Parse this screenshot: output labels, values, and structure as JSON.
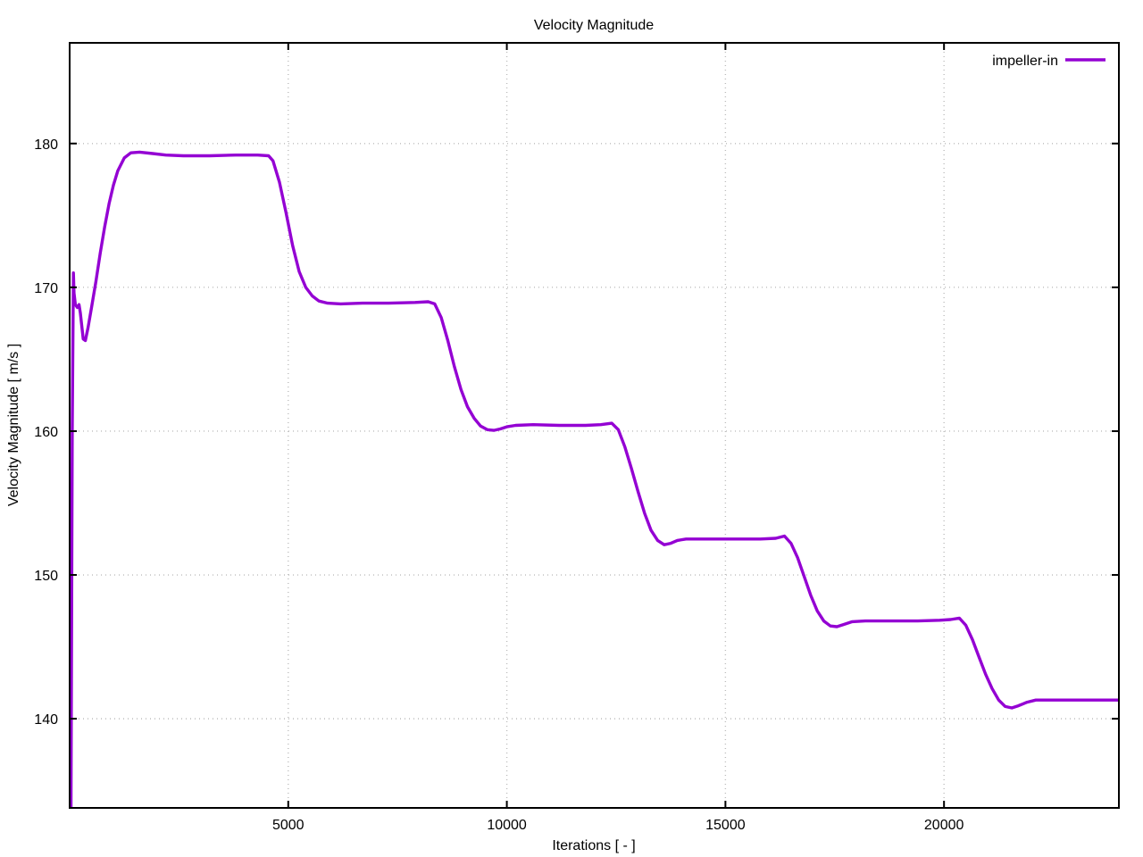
{
  "chart_data": {
    "type": "line",
    "title": "Velocity Magnitude",
    "xlabel": "Iterations [ - ]",
    "ylabel": "Velocity Magnitude [ m/s ]",
    "xlim": [
      0,
      24000
    ],
    "ylim": [
      133.8,
      187.0
    ],
    "xticks": [
      "5000",
      "10000",
      "15000",
      "20000"
    ],
    "xtick_values": [
      5000,
      10000,
      15000,
      20000
    ],
    "yticks": [
      "140",
      "150",
      "160",
      "170",
      "180"
    ],
    "ytick_values": [
      140,
      150,
      160,
      170,
      180
    ],
    "grid": "dotted",
    "legend_position": "top-right-inside",
    "colors": {
      "line": "#9400d3",
      "axis": "#000000",
      "grid": "#bcbcbc",
      "background": "#ffffff",
      "text": "#000000"
    },
    "series": [
      {
        "name": "impeller-in",
        "color": "#9400d3",
        "points": [
          [
            30,
            133.8
          ],
          [
            60,
            160.0
          ],
          [
            85,
            171.0
          ],
          [
            100,
            169.6
          ],
          [
            130,
            168.8
          ],
          [
            175,
            168.6
          ],
          [
            215,
            168.8
          ],
          [
            245,
            168.2
          ],
          [
            310,
            166.4
          ],
          [
            360,
            166.3
          ],
          [
            420,
            167.2
          ],
          [
            500,
            168.6
          ],
          [
            600,
            170.4
          ],
          [
            700,
            172.4
          ],
          [
            800,
            174.2
          ],
          [
            900,
            175.8
          ],
          [
            1000,
            177.1
          ],
          [
            1100,
            178.1
          ],
          [
            1250,
            179.0
          ],
          [
            1400,
            179.35
          ],
          [
            1600,
            179.4
          ],
          [
            1900,
            179.3
          ],
          [
            2200,
            179.2
          ],
          [
            2600,
            179.15
          ],
          [
            3200,
            179.15
          ],
          [
            3800,
            179.2
          ],
          [
            4300,
            179.2
          ],
          [
            4550,
            179.15
          ],
          [
            4650,
            178.8
          ],
          [
            4800,
            177.3
          ],
          [
            4950,
            175.2
          ],
          [
            5100,
            172.9
          ],
          [
            5250,
            171.1
          ],
          [
            5400,
            170.0
          ],
          [
            5550,
            169.4
          ],
          [
            5700,
            169.05
          ],
          [
            5900,
            168.9
          ],
          [
            6200,
            168.85
          ],
          [
            6700,
            168.9
          ],
          [
            7300,
            168.9
          ],
          [
            7900,
            168.95
          ],
          [
            8200,
            169.0
          ],
          [
            8350,
            168.85
          ],
          [
            8500,
            167.9
          ],
          [
            8650,
            166.3
          ],
          [
            8800,
            164.5
          ],
          [
            8950,
            162.9
          ],
          [
            9100,
            161.7
          ],
          [
            9250,
            160.9
          ],
          [
            9400,
            160.35
          ],
          [
            9550,
            160.1
          ],
          [
            9700,
            160.05
          ],
          [
            9850,
            160.15
          ],
          [
            10000,
            160.3
          ],
          [
            10200,
            160.4
          ],
          [
            10600,
            160.45
          ],
          [
            11200,
            160.4
          ],
          [
            11800,
            160.4
          ],
          [
            12150,
            160.45
          ],
          [
            12400,
            160.55
          ],
          [
            12550,
            160.1
          ],
          [
            12700,
            158.9
          ],
          [
            12850,
            157.4
          ],
          [
            13000,
            155.8
          ],
          [
            13150,
            154.3
          ],
          [
            13300,
            153.1
          ],
          [
            13450,
            152.4
          ],
          [
            13600,
            152.1
          ],
          [
            13750,
            152.2
          ],
          [
            13900,
            152.4
          ],
          [
            14100,
            152.5
          ],
          [
            14600,
            152.5
          ],
          [
            15200,
            152.5
          ],
          [
            15800,
            152.5
          ],
          [
            16150,
            152.55
          ],
          [
            16350,
            152.7
          ],
          [
            16500,
            152.2
          ],
          [
            16650,
            151.2
          ],
          [
            16800,
            149.9
          ],
          [
            16950,
            148.6
          ],
          [
            17100,
            147.5
          ],
          [
            17250,
            146.8
          ],
          [
            17400,
            146.45
          ],
          [
            17550,
            146.4
          ],
          [
            17700,
            146.55
          ],
          [
            17900,
            146.75
          ],
          [
            18200,
            146.8
          ],
          [
            18800,
            146.8
          ],
          [
            19400,
            146.8
          ],
          [
            19900,
            146.85
          ],
          [
            20150,
            146.9
          ],
          [
            20350,
            147.0
          ],
          [
            20500,
            146.5
          ],
          [
            20650,
            145.5
          ],
          [
            20800,
            144.3
          ],
          [
            20950,
            143.1
          ],
          [
            21100,
            142.1
          ],
          [
            21250,
            141.3
          ],
          [
            21400,
            140.85
          ],
          [
            21550,
            140.75
          ],
          [
            21700,
            140.9
          ],
          [
            21900,
            141.15
          ],
          [
            22100,
            141.3
          ],
          [
            22600,
            141.3
          ],
          [
            23300,
            141.3
          ],
          [
            24000,
            141.3
          ]
        ]
      }
    ]
  }
}
